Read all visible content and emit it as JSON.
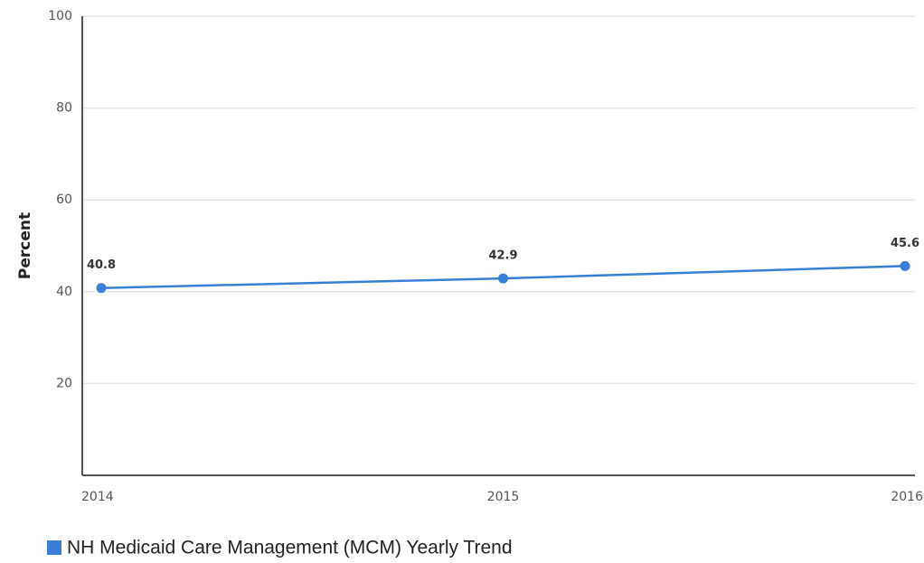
{
  "chart_data": {
    "type": "line",
    "y_label": "Percent",
    "categories": [
      "2014",
      "2015",
      "2016"
    ],
    "series": [
      {
        "name": "NH Medicaid Care Management (MCM) Yearly Trend",
        "color": "#3a7fd5",
        "values": [
          40.8,
          42.9,
          45.6
        ]
      }
    ],
    "ylim": [
      0,
      100
    ],
    "yticks": [
      20,
      40,
      60,
      80,
      100
    ],
    "grid": true,
    "legend": "bottom-left"
  }
}
